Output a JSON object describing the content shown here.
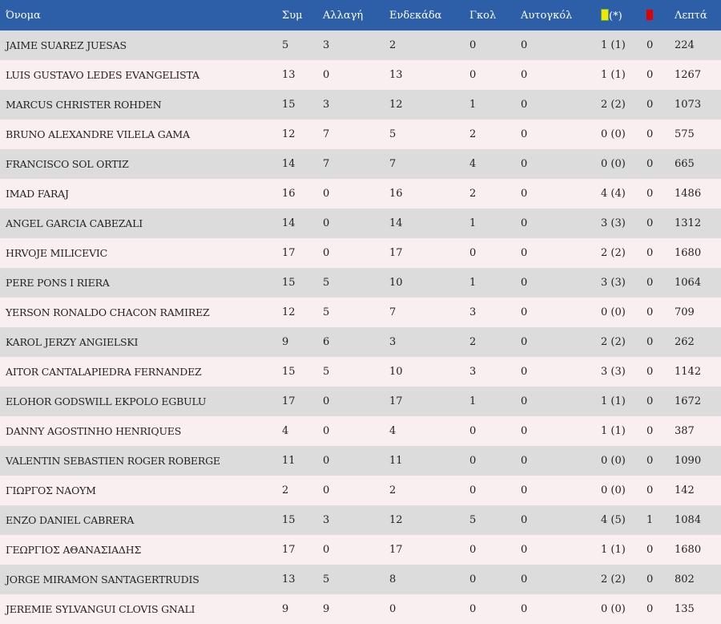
{
  "columns": {
    "name": "Όνομα",
    "apps": "Συμ",
    "sub": "Αλλαγή",
    "starts": "Ενδεκάδα",
    "goals": "Γκολ",
    "own_goals": "Αυτογκόλ",
    "yellow_suffix": "(*)",
    "minutes": "Λεπτά"
  },
  "icons": {
    "yellow_card": "yellow-card-icon",
    "red_card": "red-card-icon"
  },
  "colors": {
    "header_bg": "#2c5fa7",
    "row_odd": "#dcdcdc",
    "row_even": "#f9eff0",
    "yellow_card": "#f5e600",
    "red_card": "#e00000"
  },
  "rows": [
    {
      "name": "JAIME SUAREZ JUESAS",
      "apps": "5",
      "sub": "3",
      "starts": "2",
      "goals": "0",
      "own_goals": "0",
      "yellow": "1 (1)",
      "red": "0",
      "minutes": "224"
    },
    {
      "name": "LUIS GUSTAVO LEDES EVANGELISTA",
      "apps": "13",
      "sub": "0",
      "starts": "13",
      "goals": "0",
      "own_goals": "0",
      "yellow": "1 (1)",
      "red": "0",
      "minutes": "1267"
    },
    {
      "name": "MARCUS CHRISTER ROHDEN",
      "apps": "15",
      "sub": "3",
      "starts": "12",
      "goals": "1",
      "own_goals": "0",
      "yellow": "2 (2)",
      "red": "0",
      "minutes": "1073"
    },
    {
      "name": "BRUNO ALEXANDRE VILELA GAMA",
      "apps": "12",
      "sub": "7",
      "starts": "5",
      "goals": "2",
      "own_goals": "0",
      "yellow": "0 (0)",
      "red": "0",
      "minutes": "575"
    },
    {
      "name": "FRANCISCO SOL ORTIZ",
      "apps": "14",
      "sub": "7",
      "starts": "7",
      "goals": "4",
      "own_goals": "0",
      "yellow": "0 (0)",
      "red": "0",
      "minutes": "665"
    },
    {
      "name": "IMAD FARAJ",
      "apps": "16",
      "sub": "0",
      "starts": "16",
      "goals": "2",
      "own_goals": "0",
      "yellow": "4 (4)",
      "red": "0",
      "minutes": "1486"
    },
    {
      "name": "ANGEL GARCIA CABEZALI",
      "apps": "14",
      "sub": "0",
      "starts": "14",
      "goals": "1",
      "own_goals": "0",
      "yellow": "3 (3)",
      "red": "0",
      "minutes": "1312"
    },
    {
      "name": "HRVOJE MILICEVIC",
      "apps": "17",
      "sub": "0",
      "starts": "17",
      "goals": "0",
      "own_goals": "0",
      "yellow": "2 (2)",
      "red": "0",
      "minutes": "1680"
    },
    {
      "name": "PERE PONS I RIERA",
      "apps": "15",
      "sub": "5",
      "starts": "10",
      "goals": "1",
      "own_goals": "0",
      "yellow": "3 (3)",
      "red": "0",
      "minutes": "1064"
    },
    {
      "name": "YERSON RONALDO CHACON RAMIREZ",
      "apps": "12",
      "sub": "5",
      "starts": "7",
      "goals": "3",
      "own_goals": "0",
      "yellow": "0 (0)",
      "red": "0",
      "minutes": "709"
    },
    {
      "name": "KAROL JERZY ANGIELSKI",
      "apps": "9",
      "sub": "6",
      "starts": "3",
      "goals": "2",
      "own_goals": "0",
      "yellow": "2 (2)",
      "red": "0",
      "minutes": "262"
    },
    {
      "name": "AITOR CANTALAPIEDRA FERNANDEZ",
      "apps": "15",
      "sub": "5",
      "starts": "10",
      "goals": "3",
      "own_goals": "0",
      "yellow": "3 (3)",
      "red": "0",
      "minutes": "1142"
    },
    {
      "name": "ELOHOR GODSWILL EKPOLO EGBULU",
      "apps": "17",
      "sub": "0",
      "starts": "17",
      "goals": "1",
      "own_goals": "0",
      "yellow": "1 (1)",
      "red": "0",
      "minutes": "1672"
    },
    {
      "name": "DANNY AGOSTINHO HENRIQUES",
      "apps": "4",
      "sub": "0",
      "starts": "4",
      "goals": "0",
      "own_goals": "0",
      "yellow": "1 (1)",
      "red": "0",
      "minutes": "387"
    },
    {
      "name": "VALENTIN SEBASTIEN ROGER ROBERGE",
      "apps": "11",
      "sub": "0",
      "starts": "11",
      "goals": "0",
      "own_goals": "0",
      "yellow": "0 (0)",
      "red": "0",
      "minutes": "1090"
    },
    {
      "name": "ΓΙΩΡΓΟΣ ΝΑΟΥΜ",
      "apps": "2",
      "sub": "0",
      "starts": "2",
      "goals": "0",
      "own_goals": "0",
      "yellow": "0 (0)",
      "red": "0",
      "minutes": "142"
    },
    {
      "name": "ENZO DANIEL CABRERA",
      "apps": "15",
      "sub": "3",
      "starts": "12",
      "goals": "5",
      "own_goals": "0",
      "yellow": "4 (5)",
      "red": "1",
      "minutes": "1084"
    },
    {
      "name": "ΓΕΩΡΓΙΟΣ ΑΘΑΝΑΣΙΑΔΗΣ",
      "apps": "17",
      "sub": "0",
      "starts": "17",
      "goals": "0",
      "own_goals": "0",
      "yellow": "1 (1)",
      "red": "0",
      "minutes": "1680"
    },
    {
      "name": "JORGE MIRAMON SANTAGERTRUDIS",
      "apps": "13",
      "sub": "5",
      "starts": "8",
      "goals": "0",
      "own_goals": "0",
      "yellow": "2 (2)",
      "red": "0",
      "minutes": "802"
    },
    {
      "name": "JEREMIE SYLVANGUI CLOVIS GNALI",
      "apps": "9",
      "sub": "9",
      "starts": "0",
      "goals": "0",
      "own_goals": "0",
      "yellow": "0 (0)",
      "red": "0",
      "minutes": "135"
    }
  ]
}
